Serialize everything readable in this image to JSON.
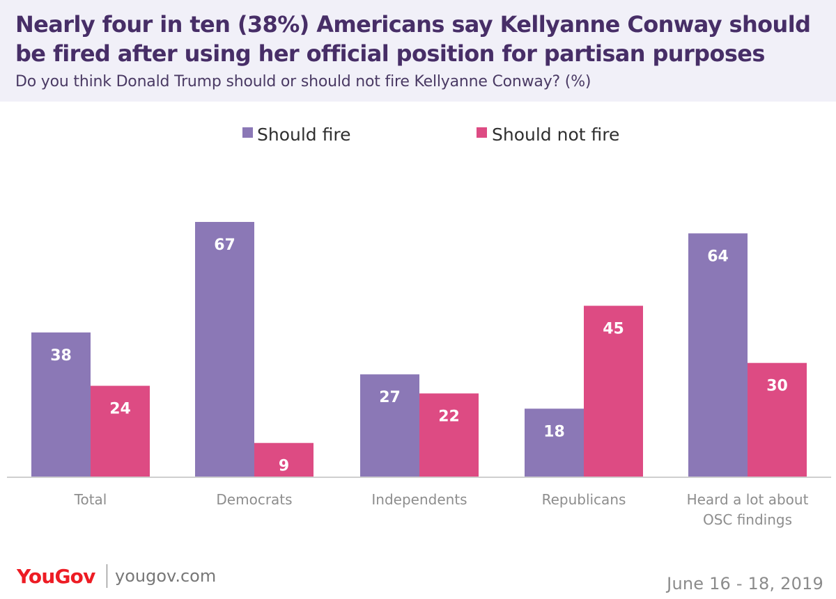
{
  "header": {
    "title": "Nearly four in ten (38%) Americans say Kellyanne Conway should be fired after using her official position for partisan purposes",
    "subtitle": "Do you think Donald Trump should or should not fire Kellyanne Conway? (%)"
  },
  "chart_data": {
    "type": "bar",
    "title": "Nearly four in ten (38%) Americans say Kellyanne Conway should be fired after using her official position for partisan purposes",
    "subtitle": "Do you think Donald Trump should or should not fire Kellyanne Conway? (%)",
    "categories": [
      [
        "Total"
      ],
      [
        "Democrats"
      ],
      [
        "Independents"
      ],
      [
        "Republicans"
      ],
      [
        "Heard a lot about",
        "OSC findings"
      ]
    ],
    "series": [
      {
        "name": "Should fire",
        "values": [
          38,
          67,
          27,
          18,
          64
        ],
        "color": "#8b78b6"
      },
      {
        "name": "Should not fire",
        "values": [
          24,
          9,
          22,
          45,
          30
        ],
        "color": "#dd4b83"
      }
    ],
    "xlabel": "",
    "ylabel": "",
    "ylim": [
      0,
      67
    ],
    "grid": false,
    "legend": "top-center",
    "data_labels": true
  },
  "footer": {
    "logo": "YouGov",
    "url": "yougov.com",
    "date": "June 16 - 18, 2019"
  },
  "colors": {
    "header_background": "#f1f0f8",
    "title": "#472e67",
    "axis": "#cfcfcf",
    "category_text": "#8d8d8d",
    "logo": "#ed1c24"
  }
}
